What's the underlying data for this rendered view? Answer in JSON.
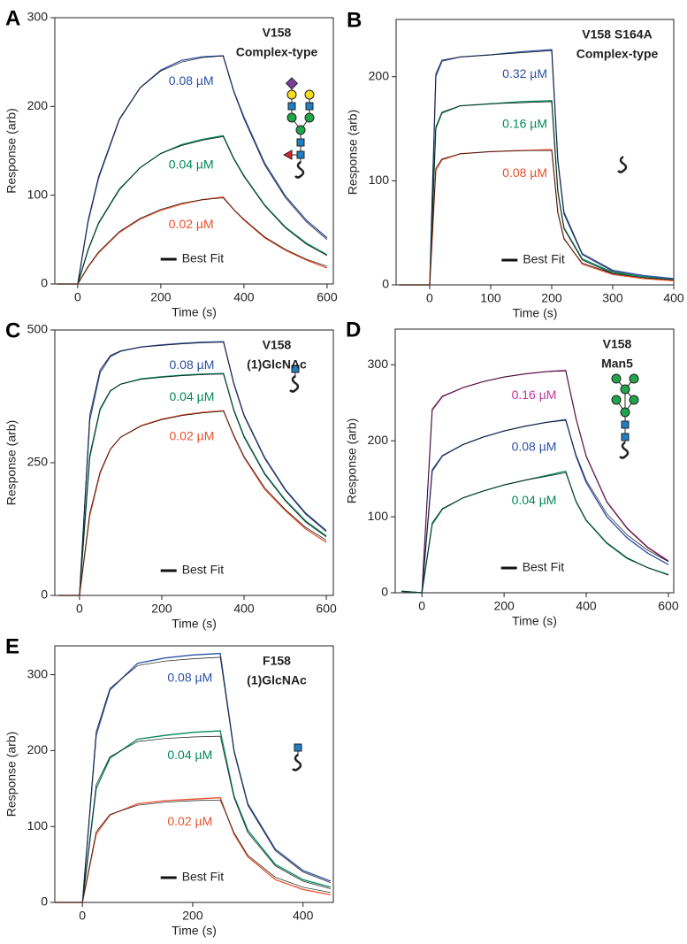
{
  "chart_data": [
    {
      "type": "line",
      "panel": "A",
      "title_lines": [
        "V158",
        "Complex-type"
      ],
      "x_label": "Time (s)",
      "y_label": "Response (arb)",
      "fit_label": "Best Fit",
      "xlim": [
        -55,
        615
      ],
      "ylim": [
        0,
        300
      ],
      "xticks": [
        0,
        200,
        400,
        600
      ],
      "yticks": [
        0,
        100,
        200,
        300
      ],
      "x": [
        -50,
        0,
        25,
        50,
        100,
        150,
        200,
        250,
        300,
        350,
        375,
        400,
        450,
        500,
        550,
        600
      ],
      "series": [
        {
          "name": "0.08 µM",
          "color": "#2a4fa8",
          "values": [
            0,
            0,
            70,
            119,
            185,
            221,
            241,
            252,
            256,
            257,
            218,
            188,
            136,
            99,
            72,
            52
          ],
          "fit_values": [
            0,
            0,
            72,
            121,
            186,
            221,
            240,
            250,
            255,
            257,
            217,
            186,
            134,
            97,
            70,
            50
          ]
        },
        {
          "name": "0.04 µM",
          "color": "#00875a",
          "values": [
            0,
            0,
            38,
            68,
            106,
            131,
            147,
            157,
            163,
            167,
            142,
            122,
            89,
            64,
            46,
            33
          ],
          "fit_values": [
            0,
            0,
            39,
            69,
            107,
            131,
            147,
            156,
            162,
            166,
            141,
            121,
            88,
            63,
            45,
            32
          ]
        },
        {
          "name": "0.02 µM",
          "color": "#e8502a",
          "values": [
            0,
            0,
            19,
            35,
            58,
            73,
            83,
            90,
            95,
            98,
            84,
            72,
            52,
            38,
            27,
            18
          ],
          "fit_values": [
            0,
            0,
            20,
            36,
            59,
            74,
            84,
            91,
            95,
            97,
            84,
            73,
            53,
            39,
            28,
            20
          ]
        }
      ]
    },
    {
      "type": "line",
      "panel": "B",
      "title_lines": [
        "V158 S164A",
        "Complex-type"
      ],
      "x_label": "Time (s)",
      "y_label": "Response (arb)",
      "fit_label": "Best Fit",
      "xlim": [
        -55,
        400
      ],
      "ylim": [
        0,
        255
      ],
      "xticks": [
        0,
        100,
        200,
        300,
        400
      ],
      "yticks": [
        0,
        100,
        200
      ],
      "x": [
        -50,
        0,
        10,
        20,
        50,
        100,
        150,
        200,
        210,
        220,
        250,
        300,
        350,
        400
      ],
      "series": [
        {
          "name": "0.32 µM",
          "color": "#2a4fa8",
          "values": [
            0,
            0,
            200,
            215,
            219,
            221,
            224,
            226,
            120,
            70,
            30,
            14,
            9,
            6
          ],
          "fit_values": [
            0,
            0,
            203,
            216,
            219,
            221,
            223,
            225,
            118,
            68,
            29,
            13,
            8,
            5
          ]
        },
        {
          "name": "0.16 µM",
          "color": "#00875a",
          "values": [
            0,
            0,
            150,
            165,
            172,
            174,
            176,
            177,
            90,
            55,
            25,
            12,
            8,
            5
          ],
          "fit_values": [
            0,
            0,
            152,
            166,
            172,
            174,
            175,
            176,
            89,
            54,
            24,
            11,
            7,
            4
          ]
        },
        {
          "name": "0.08 µM",
          "color": "#e8502a",
          "values": [
            0,
            0,
            110,
            120,
            126,
            128,
            129,
            130,
            70,
            45,
            20,
            10,
            6,
            4
          ],
          "fit_values": [
            0,
            0,
            112,
            121,
            126,
            128,
            129,
            129,
            69,
            44,
            21,
            11,
            7,
            5
          ]
        }
      ]
    },
    {
      "type": "line",
      "panel": "C",
      "title_lines": [
        "V158",
        "(1)GlcNAc"
      ],
      "x_label": "Time (s)",
      "y_label": "Response (arb)",
      "fit_label": "Best Fit",
      "xlim": [
        -60,
        617
      ],
      "ylim": [
        0,
        500
      ],
      "xticks": [
        0,
        200,
        400,
        600
      ],
      "yticks": [
        0,
        250,
        500
      ],
      "x": [
        -50,
        0,
        25,
        50,
        75,
        100,
        150,
        200,
        250,
        300,
        350,
        375,
        400,
        450,
        500,
        550,
        600
      ],
      "series": [
        {
          "name": "0.08 µM",
          "color": "#2a4fa8",
          "values": [
            0,
            0,
            330,
            420,
            450,
            460,
            468,
            472,
            475,
            477,
            478,
            400,
            340,
            260,
            200,
            155,
            122
          ],
          "fit_values": [
            0,
            0,
            340,
            425,
            452,
            461,
            468,
            471,
            474,
            476,
            477,
            398,
            338,
            258,
            198,
            153,
            120
          ]
        },
        {
          "name": "0.04 µM",
          "color": "#00875a",
          "values": [
            0,
            0,
            260,
            350,
            385,
            398,
            408,
            412,
            415,
            417,
            418,
            350,
            300,
            230,
            180,
            140,
            112
          ],
          "fit_values": [
            0,
            0,
            265,
            352,
            386,
            398,
            407,
            411,
            414,
            416,
            417,
            348,
            298,
            228,
            178,
            138,
            110
          ]
        },
        {
          "name": "0.02 µM",
          "color": "#e8502a",
          "values": [
            0,
            0,
            150,
            230,
            275,
            298,
            320,
            332,
            340,
            345,
            348,
            300,
            260,
            200,
            160,
            125,
            100
          ],
          "fit_values": [
            0,
            0,
            155,
            233,
            276,
            298,
            319,
            331,
            339,
            344,
            347,
            302,
            262,
            203,
            162,
            128,
            104
          ]
        }
      ]
    },
    {
      "type": "line",
      "panel": "D",
      "title_lines": [
        "V158",
        "Man5"
      ],
      "x_label": "Time (s)",
      "y_label": "Response (arb)",
      "fit_label": "Best Fit",
      "xlim": [
        -65,
        613
      ],
      "ylim": [
        0,
        347
      ],
      "xticks": [
        0,
        200,
        400,
        600
      ],
      "yticks": [
        0,
        100,
        200,
        300
      ],
      "x": [
        -50,
        0,
        25,
        50,
        100,
        150,
        200,
        250,
        300,
        350,
        375,
        400,
        450,
        500,
        550,
        600
      ],
      "series": [
        {
          "name": "0.16 µM",
          "color": "#c0349a",
          "values": [
            2,
            0,
            240,
            258,
            270,
            278,
            284,
            288,
            291,
            293,
            230,
            180,
            120,
            85,
            60,
            42
          ],
          "fit_values": [
            2,
            0,
            242,
            259,
            270,
            278,
            284,
            288,
            291,
            292,
            229,
            179,
            119,
            84,
            59,
            41
          ]
        },
        {
          "name": "0.08 µM",
          "color": "#2a4fa8",
          "values": [
            2,
            0,
            160,
            180,
            195,
            205,
            213,
            219,
            224,
            228,
            180,
            145,
            100,
            72,
            52,
            37
          ],
          "fit_values": [
            2,
            0,
            162,
            181,
            195,
            205,
            213,
            219,
            224,
            227,
            182,
            148,
            104,
            76,
            56,
            41
          ]
        },
        {
          "name": "0.04 µM",
          "color": "#00875a",
          "values": [
            2,
            0,
            90,
            110,
            125,
            134,
            142,
            148,
            154,
            160,
            120,
            95,
            65,
            45,
            33,
            24
          ],
          "fit_values": [
            2,
            0,
            92,
            111,
            125,
            134,
            142,
            148,
            153,
            158,
            121,
            96,
            66,
            46,
            33,
            23
          ]
        }
      ]
    },
    {
      "type": "line",
      "panel": "E",
      "title_lines": [
        "F158",
        "(1)GlcNAc"
      ],
      "x_label": "Time (s)",
      "y_label": "Response (arb)",
      "fit_label": "Best Fit",
      "xlim": [
        -50,
        455
      ],
      "ylim": [
        0,
        338
      ],
      "xticks": [
        0,
        200,
        400
      ],
      "yticks": [
        0,
        100,
        200,
        300
      ],
      "x": [
        -50,
        0,
        25,
        50,
        100,
        150,
        200,
        250,
        275,
        300,
        350,
        400,
        450
      ],
      "series": [
        {
          "name": "0.08 µM",
          "color": "#2a4fa8",
          "values": [
            0,
            0,
            220,
            280,
            315,
            322,
            326,
            328,
            200,
            130,
            70,
            42,
            28
          ],
          "fit_values": [
            0,
            0,
            225,
            282,
            312,
            318,
            321,
            323,
            198,
            128,
            68,
            40,
            26
          ]
        },
        {
          "name": "0.04 µM",
          "color": "#00875a",
          "values": [
            0,
            0,
            150,
            190,
            215,
            220,
            224,
            226,
            140,
            95,
            50,
            30,
            20
          ],
          "fit_values": [
            0,
            0,
            155,
            192,
            212,
            216,
            218,
            219,
            138,
            92,
            48,
            28,
            18
          ]
        },
        {
          "name": "0.02 µM",
          "color": "#e8502a",
          "values": [
            0,
            0,
            90,
            115,
            130,
            134,
            136,
            138,
            90,
            60,
            30,
            17,
            10
          ],
          "fit_values": [
            0,
            0,
            93,
            116,
            128,
            132,
            134,
            135,
            92,
            62,
            33,
            20,
            13
          ]
        }
      ]
    }
  ]
}
